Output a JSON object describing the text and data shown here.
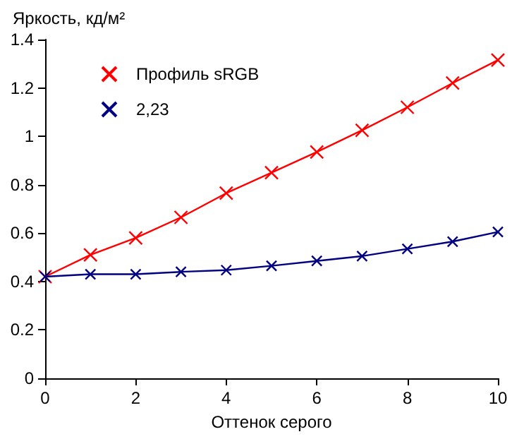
{
  "chart_data": {
    "type": "line",
    "ylabel": "Яркость, кд/м²",
    "xlabel": "Оттенок серого",
    "x": [
      0,
      1,
      2,
      3,
      4,
      5,
      6,
      7,
      8,
      9,
      10
    ],
    "series": [
      {
        "name": "Профиль sRGB",
        "color": "#ff0000",
        "values": [
          0.42,
          0.51,
          0.58,
          0.665,
          0.765,
          0.85,
          0.935,
          1.025,
          1.12,
          1.22,
          1.315
        ]
      },
      {
        "name": "2,23",
        "color": "#000080",
        "values": [
          0.42,
          0.43,
          0.43,
          0.44,
          0.447,
          0.465,
          0.485,
          0.505,
          0.535,
          0.565,
          0.605
        ]
      }
    ],
    "xlim": [
      0,
      10
    ],
    "xticks": [
      0,
      2,
      4,
      6,
      8,
      10
    ],
    "ylim": [
      0,
      1.4
    ],
    "yticks": [
      0,
      0.2,
      0.4,
      0.6,
      0.8,
      1,
      1.2,
      1.4
    ],
    "grid": false,
    "legend": "top left",
    "marker": "cross",
    "line_style": "solid"
  }
}
